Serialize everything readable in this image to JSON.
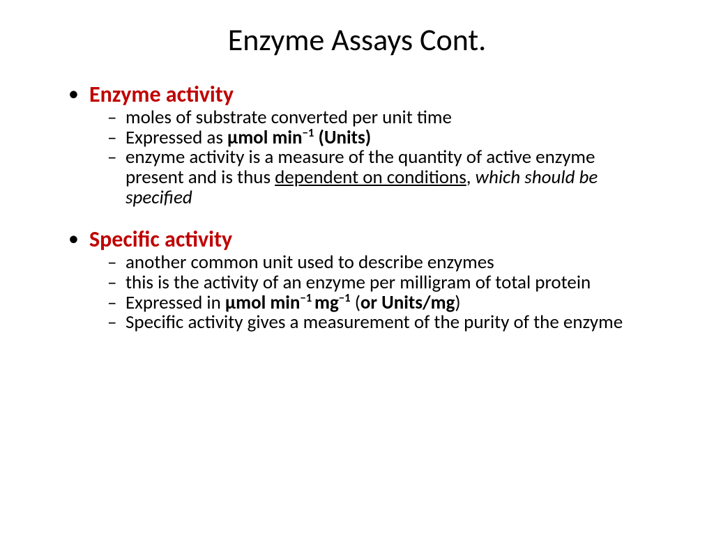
{
  "colors": {
    "background": "#ffffff",
    "title_color": "#000000",
    "heading_color": "#c00000",
    "body_color": "#000000",
    "bullet_color": "#000000"
  },
  "typography": {
    "title_fontsize": 44,
    "heading_fontsize": 32,
    "body_fontsize": 27,
    "font_family": "Calibri"
  },
  "title": "Enzyme Assays Cont.",
  "sections": [
    {
      "heading": "Enzyme activity",
      "items": [
        {
          "parts": [
            {
              "text": "moles of substrate converted per unit time"
            }
          ]
        },
        {
          "parts": [
            {
              "text": "Expressed as "
            },
            {
              "text": "μmol min",
              "bold": true
            },
            {
              "text": "−1",
              "bold": true,
              "super": true
            },
            {
              "text": " (Units)",
              "bold": true
            }
          ]
        },
        {
          "parts": [
            {
              "text": "enzyme activity is a measure of the quantity of active enzyme present and is thus "
            },
            {
              "text": "dependent on conditions",
              "underline": true
            },
            {
              "text": ", "
            },
            {
              "text": "which should be specified",
              "italic": true
            }
          ]
        }
      ]
    },
    {
      "heading": "Specific activity",
      "items": [
        {
          "parts": [
            {
              "text": "another common unit used to describe enzymes"
            }
          ]
        },
        {
          "parts": [
            {
              "text": "this is the activity of an enzyme per milligram of total protein"
            }
          ]
        },
        {
          "parts": [
            {
              "text": "Expressed in "
            },
            {
              "text": "μmol min",
              "bold": true
            },
            {
              "text": "−1 ",
              "bold": true,
              "super": true
            },
            {
              "text": "mg",
              "bold": true
            },
            {
              "text": "−1",
              "bold": true,
              "super": true
            },
            {
              "text": "  ("
            },
            {
              "text": "or Units/mg",
              "bold": true
            },
            {
              "text": ")"
            }
          ]
        },
        {
          "parts": [
            {
              "text": "Specific activity gives a measurement of the purity of the enzyme"
            }
          ]
        }
      ]
    }
  ]
}
